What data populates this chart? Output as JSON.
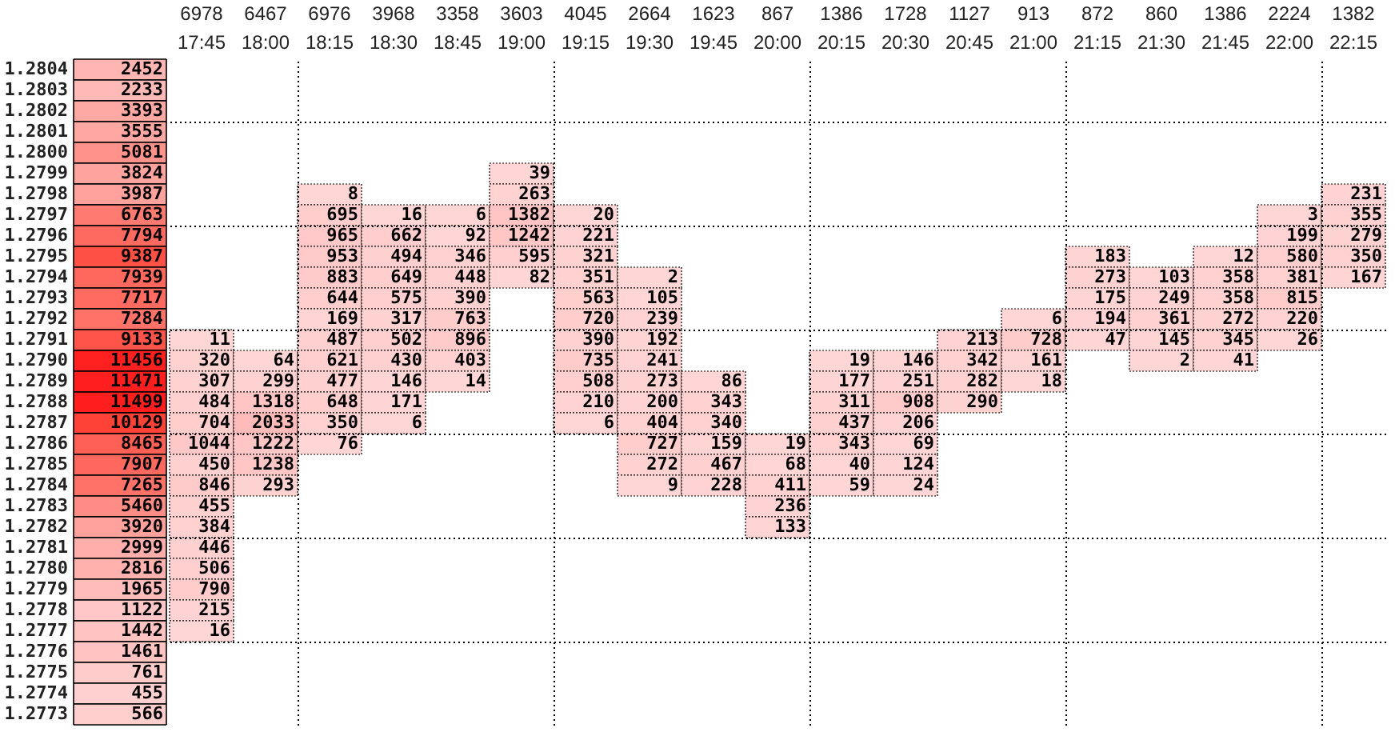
{
  "chart_data": [
    {
      "type": "heatmap",
      "categories": [
        null
      ],
      "y_categories": [
        "1.2804",
        "1.2803",
        "1.2802",
        "1.2801",
        "1.2800",
        "1.2799",
        "1.2798",
        "1.2797",
        "1.2796",
        "1.2795",
        "1.2794",
        "1.2793",
        "1.2792",
        "1.2791",
        "1.2790",
        "1.2789",
        "1.2788",
        "1.2787",
        "1.2786",
        "1.2785",
        "1.2784",
        "1.2783",
        "1.2782",
        "1.2781",
        "1.2780",
        "1.2779",
        "1.2778",
        "1.2777",
        "1.2776",
        "1.2775",
        "1.2774",
        "1.2773"
      ],
      "cells": [
        [
          2452
        ],
        [
          2233
        ],
        [
          3393
        ],
        [
          3555
        ],
        [
          5081
        ],
        [
          3824
        ],
        [
          3987
        ],
        [
          6763
        ],
        [
          7794
        ],
        [
          9387
        ],
        [
          7939
        ],
        [
          7717
        ],
        [
          7284
        ],
        [
          9133
        ],
        [
          11456
        ],
        [
          11471
        ],
        [
          11499
        ],
        [
          10129
        ],
        [
          8465
        ],
        [
          7907
        ],
        [
          7265
        ],
        [
          5460
        ],
        [
          3920
        ],
        [
          2999
        ],
        [
          2816
        ],
        [
          1965
        ],
        [
          1122
        ],
        [
          1442
        ],
        [
          1461
        ],
        [
          761
        ],
        [
          455
        ],
        [
          566
        ]
      ],
      "data_labels": true,
      "tick_labels": "y"
    },
    {
      "type": "heatmap",
      "categories": [
        "17:45",
        "18:00",
        "18:15",
        "18:30",
        "18:45",
        "19:00",
        "19:15",
        "19:30",
        "19:45",
        "20:00",
        "20:15",
        "20:30",
        "20:45",
        "21:00",
        "21:15",
        "21:30",
        "21:45",
        "22:00",
        "22:15"
      ],
      "y_categories": [
        "1.2804",
        "1.2803",
        "1.2802",
        "1.2801",
        "1.2800",
        "1.2799",
        "1.2798",
        "1.2797",
        "1.2796",
        "1.2795",
        "1.2794",
        "1.2793",
        "1.2792",
        "1.2791",
        "1.2790",
        "1.2789",
        "1.2788",
        "1.2787",
        "1.2786",
        "1.2785",
        "1.2784",
        "1.2783",
        "1.2782",
        "1.2781",
        "1.2780",
        "1.2779",
        "1.2778",
        "1.2777",
        "1.2776",
        "1.2775",
        "1.2774",
        "1.2773"
      ],
      "totals": [
        "6978",
        "6467",
        "6976",
        "3968",
        "3358",
        "3603",
        "4045",
        "2664",
        "1623",
        "867",
        "1386",
        "1728",
        "1127",
        "913",
        "872",
        "860",
        "1386",
        "2224",
        "1382"
      ],
      "cells": [
        [
          null,
          null,
          null,
          null,
          null,
          null,
          null,
          null,
          null,
          null,
          null,
          null,
          null,
          null,
          null,
          null,
          null,
          null,
          null
        ],
        [
          null,
          null,
          null,
          null,
          null,
          null,
          null,
          null,
          null,
          null,
          null,
          null,
          null,
          null,
          null,
          null,
          null,
          null,
          null
        ],
        [
          null,
          null,
          null,
          null,
          null,
          null,
          null,
          null,
          null,
          null,
          null,
          null,
          null,
          null,
          null,
          null,
          null,
          null,
          null
        ],
        [
          null,
          null,
          null,
          null,
          null,
          null,
          null,
          null,
          null,
          null,
          null,
          null,
          null,
          null,
          null,
          null,
          null,
          null,
          null
        ],
        [
          null,
          null,
          null,
          null,
          null,
          null,
          null,
          null,
          null,
          null,
          null,
          null,
          null,
          null,
          null,
          null,
          null,
          null,
          null
        ],
        [
          null,
          null,
          null,
          null,
          null,
          39,
          null,
          null,
          null,
          null,
          null,
          null,
          null,
          null,
          null,
          null,
          null,
          null,
          null
        ],
        [
          null,
          null,
          8,
          null,
          null,
          263,
          null,
          null,
          null,
          null,
          null,
          null,
          null,
          null,
          null,
          null,
          null,
          null,
          231
        ],
        [
          null,
          null,
          695,
          16,
          6,
          1382,
          20,
          null,
          null,
          null,
          null,
          null,
          null,
          null,
          null,
          null,
          null,
          3,
          355
        ],
        [
          null,
          null,
          965,
          662,
          92,
          1242,
          221,
          null,
          null,
          null,
          null,
          null,
          null,
          null,
          null,
          null,
          null,
          199,
          279
        ],
        [
          null,
          null,
          953,
          494,
          346,
          595,
          321,
          null,
          null,
          null,
          null,
          null,
          null,
          null,
          183,
          null,
          12,
          580,
          350
        ],
        [
          null,
          null,
          883,
          649,
          448,
          82,
          351,
          2,
          null,
          null,
          null,
          null,
          null,
          null,
          273,
          103,
          358,
          381,
          167
        ],
        [
          null,
          null,
          644,
          575,
          390,
          null,
          563,
          105,
          null,
          null,
          null,
          null,
          null,
          null,
          175,
          249,
          358,
          815,
          null
        ],
        [
          null,
          null,
          169,
          317,
          763,
          null,
          720,
          239,
          null,
          null,
          null,
          null,
          null,
          6,
          194,
          361,
          272,
          220,
          null
        ],
        [
          11,
          null,
          487,
          502,
          896,
          null,
          390,
          192,
          null,
          null,
          null,
          null,
          213,
          728,
          47,
          145,
          345,
          26,
          null
        ],
        [
          320,
          64,
          621,
          430,
          403,
          null,
          735,
          241,
          null,
          null,
          19,
          146,
          342,
          161,
          null,
          2,
          41,
          null,
          null
        ],
        [
          307,
          299,
          477,
          146,
          14,
          null,
          508,
          273,
          86,
          null,
          177,
          251,
          282,
          18,
          null,
          null,
          null,
          null,
          null
        ],
        [
          484,
          1318,
          648,
          171,
          null,
          null,
          210,
          200,
          343,
          null,
          311,
          908,
          290,
          null,
          null,
          null,
          null,
          null,
          null
        ],
        [
          704,
          2033,
          350,
          6,
          null,
          null,
          6,
          404,
          340,
          null,
          437,
          206,
          null,
          null,
          null,
          null,
          null,
          null,
          null
        ],
        [
          1044,
          1222,
          76,
          null,
          null,
          null,
          null,
          727,
          159,
          19,
          343,
          69,
          null,
          null,
          null,
          null,
          null,
          null,
          null
        ],
        [
          450,
          1238,
          null,
          null,
          null,
          null,
          null,
          272,
          467,
          68,
          40,
          124,
          null,
          null,
          null,
          null,
          null,
          null,
          null
        ],
        [
          846,
          293,
          null,
          null,
          null,
          null,
          null,
          9,
          228,
          411,
          59,
          24,
          null,
          null,
          null,
          null,
          null,
          null,
          null
        ],
        [
          455,
          null,
          null,
          null,
          null,
          null,
          null,
          null,
          null,
          236,
          null,
          null,
          null,
          null,
          null,
          null,
          null,
          null,
          null
        ],
        [
          384,
          null,
          null,
          null,
          null,
          null,
          null,
          null,
          null,
          133,
          null,
          null,
          null,
          null,
          null,
          null,
          null,
          null,
          null
        ],
        [
          446,
          null,
          null,
          null,
          null,
          null,
          null,
          null,
          null,
          null,
          null,
          null,
          null,
          null,
          null,
          null,
          null,
          null,
          null
        ],
        [
          506,
          null,
          null,
          null,
          null,
          null,
          null,
          null,
          null,
          null,
          null,
          null,
          null,
          null,
          null,
          null,
          null,
          null,
          null
        ],
        [
          790,
          null,
          null,
          null,
          null,
          null,
          null,
          null,
          null,
          null,
          null,
          null,
          null,
          null,
          null,
          null,
          null,
          null,
          null
        ],
        [
          215,
          null,
          null,
          null,
          null,
          null,
          null,
          null,
          null,
          null,
          null,
          null,
          null,
          null,
          null,
          null,
          null,
          null,
          null
        ],
        [
          16,
          null,
          null,
          null,
          null,
          null,
          null,
          null,
          null,
          null,
          null,
          null,
          null,
          null,
          null,
          null,
          null,
          null,
          null
        ],
        [
          null,
          null,
          null,
          null,
          null,
          null,
          null,
          null,
          null,
          null,
          null,
          null,
          null,
          null,
          null,
          null,
          null,
          null,
          null
        ],
        [
          null,
          null,
          null,
          null,
          null,
          null,
          null,
          null,
          null,
          null,
          null,
          null,
          null,
          null,
          null,
          null,
          null,
          null,
          null
        ],
        [
          null,
          null,
          null,
          null,
          null,
          null,
          null,
          null,
          null,
          null,
          null,
          null,
          null,
          null,
          null,
          null,
          null,
          null,
          null
        ],
        [
          null,
          null,
          null,
          null,
          null,
          null,
          null,
          null,
          null,
          null,
          null,
          null,
          null,
          null,
          null,
          null,
          null,
          null,
          null
        ]
      ],
      "grid": true,
      "data_labels": true,
      "tick_labels": "x"
    }
  ]
}
